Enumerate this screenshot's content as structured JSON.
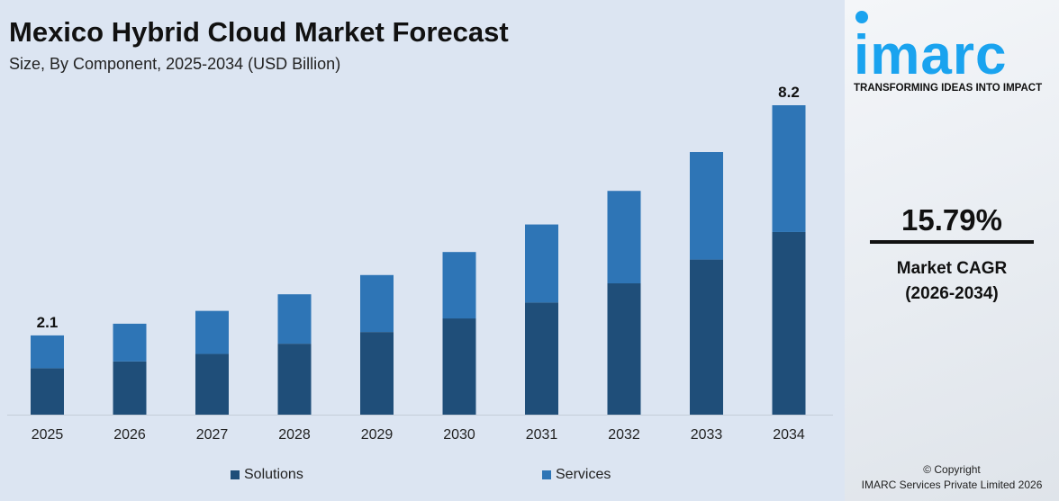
{
  "header": {
    "title": "Mexico Hybrid Cloud Market Forecast",
    "subtitle": "Size, By Component, 2025-2034 (USD Billion)"
  },
  "chart_data": {
    "type": "bar",
    "stacked": true,
    "title": "Mexico Hybrid Cloud Market Forecast",
    "subtitle": "Size, By Component, 2025-2034 (USD Billion)",
    "categories": [
      "2025",
      "2026",
      "2027",
      "2028",
      "2029",
      "2030",
      "2031",
      "2032",
      "2033",
      "2034"
    ],
    "series": [
      {
        "name": "Solutions",
        "color": "#1f4e79",
        "values": [
          1.23,
          1.41,
          1.61,
          1.88,
          2.19,
          2.55,
          2.97,
          3.48,
          4.11,
          4.84
        ]
      },
      {
        "name": "Services",
        "color": "#2e75b6",
        "values": [
          0.87,
          1.0,
          1.14,
          1.31,
          1.51,
          1.76,
          2.07,
          2.45,
          2.85,
          3.36
        ]
      }
    ],
    "data_labels": {
      "2025": "2.1",
      "2034": "8.2"
    },
    "ylim": [
      0,
      8.2
    ],
    "grid": false,
    "legend": "bottom"
  },
  "brand": {
    "logo": "imarc",
    "tagline": "TRANSFORMING IDEAS INTO IMPACT"
  },
  "cagr": {
    "value": "15.79%",
    "label": "Market CAGR",
    "period": "(2026-2034)"
  },
  "footer": {
    "copyright": "© Copyright",
    "company": "IMARC Services Private Limited 2026"
  }
}
